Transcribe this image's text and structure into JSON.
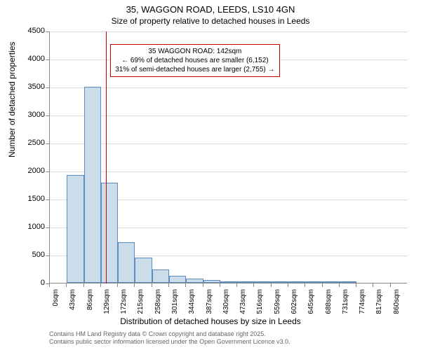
{
  "title_line1": "35, WAGGON ROAD, LEEDS, LS10 4GN",
  "title_line2": "Size of property relative to detached houses in Leeds",
  "ylabel": "Number of detached properties",
  "xlabel": "Distribution of detached houses by size in Leeds",
  "footer_line1": "Contains HM Land Registry data © Crown copyright and database right 2025.",
  "footer_line2": "Contains public sector information licensed under the Open Government Licence v3.0.",
  "chart": {
    "type": "histogram",
    "background_color": "#ffffff",
    "grid_color": "#dddddd",
    "axis_color": "#888888",
    "bar_fill": "#cbdceb",
    "bar_border": "#5b8bbf",
    "marker_color": "#cc0000",
    "annotation_border": "#cc0000",
    "ylim": [
      0,
      4500
    ],
    "ytick_step": 500,
    "yticks": [
      0,
      500,
      1000,
      1500,
      2000,
      2500,
      3000,
      3500,
      4000,
      4500
    ],
    "xtick_labels": [
      "0sqm",
      "43sqm",
      "86sqm",
      "129sqm",
      "172sqm",
      "215sqm",
      "258sqm",
      "301sqm",
      "344sqm",
      "387sqm",
      "430sqm",
      "473sqm",
      "516sqm",
      "559sqm",
      "602sqm",
      "645sqm",
      "688sqm",
      "731sqm",
      "774sqm",
      "817sqm",
      "860sqm"
    ],
    "xtick_step": 43,
    "xlim": [
      0,
      903
    ],
    "bin_width": 43,
    "values": [
      0,
      1920,
      3500,
      1790,
      730,
      450,
      240,
      130,
      80,
      55,
      30,
      12,
      5,
      3,
      2,
      1,
      1,
      1,
      0,
      0,
      0
    ],
    "marker_value": 142,
    "annotation_line1": "35 WAGGON ROAD: 142sqm",
    "annotation_line2": "← 69% of detached houses are smaller (6,152)",
    "annotation_line3": "31% of semi-detached houses are larger (2,755) →",
    "title_fontsize": 13,
    "subtitle_fontsize": 12,
    "label_fontsize": 12,
    "tick_fontsize": 11,
    "xtick_fontsize": 10,
    "annotation_fontsize": 10,
    "footer_fontsize": 9
  }
}
